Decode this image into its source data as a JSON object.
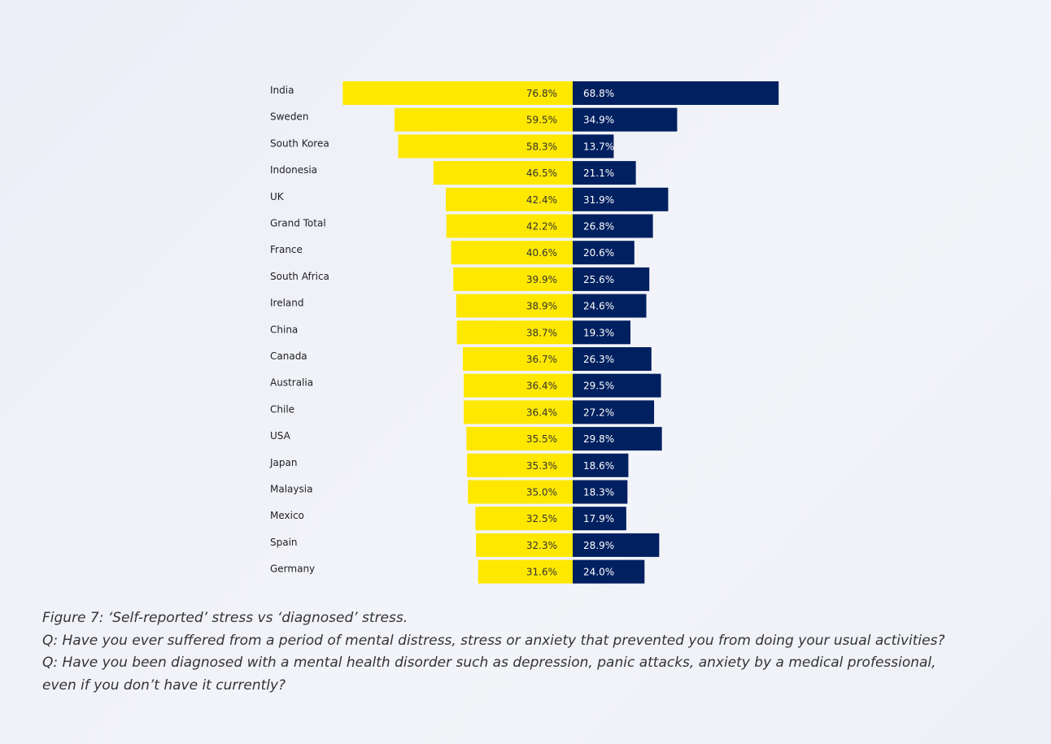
{
  "chart_data": {
    "type": "bar",
    "categories": [
      "India",
      "Sweden",
      "South Korea",
      "Indonesia",
      "UK",
      "Grand Total",
      "France",
      "South Africa",
      "Ireland",
      "China",
      "Canada",
      "Australia",
      "Chile",
      "USA",
      "Japan",
      "Malaysia",
      "Mexico",
      "Spain",
      "Germany"
    ],
    "series": [
      {
        "color": "#ffe800",
        "values": [
          76.8,
          59.5,
          58.3,
          46.5,
          42.4,
          42.2,
          40.6,
          39.9,
          38.9,
          38.7,
          36.7,
          36.4,
          36.4,
          35.5,
          35.3,
          35.0,
          32.5,
          32.3,
          31.6
        ],
        "value_labels": [
          "76.8%",
          "59.5%",
          "58.3%",
          "46.5%",
          "42.4%",
          "42.2%",
          "40.6%",
          "39.9%",
          "38.9%",
          "38.7%",
          "36.7%",
          "36.4%",
          "36.4%",
          "35.5%",
          "35.3%",
          "35.0%",
          "32.5%",
          "32.3%",
          "31.6%"
        ]
      },
      {
        "color": "#002060",
        "values": [
          68.8,
          34.9,
          13.7,
          21.1,
          31.9,
          26.8,
          20.6,
          25.6,
          24.6,
          19.3,
          26.3,
          29.5,
          27.2,
          29.8,
          18.6,
          18.3,
          17.9,
          28.9,
          24.0
        ],
        "value_labels": [
          "68.8%",
          "34.9%",
          "13.7%",
          "21.1%",
          "31.9%",
          "26.8%",
          "20.6%",
          "25.6%",
          "24.6%",
          "19.3%",
          "26.3%",
          "29.5%",
          "27.2%",
          "29.8%",
          "18.6%",
          "18.3%",
          "17.9%",
          "28.9%",
          "24.0%"
        ]
      }
    ],
    "caption": [
      "Figure 7: ‘Self-reported’ stress vs ‘diagnosed’ stress.",
      "Q: Have you ever suffered from a period of mental distress, stress or anxiety that prevented you from doing your usual activities?",
      "Q: Have you been diagnosed with a mental health disorder such as depression, panic attacks, anxiety by a medical professional,",
      "even if you don’t have it currently?"
    ]
  }
}
